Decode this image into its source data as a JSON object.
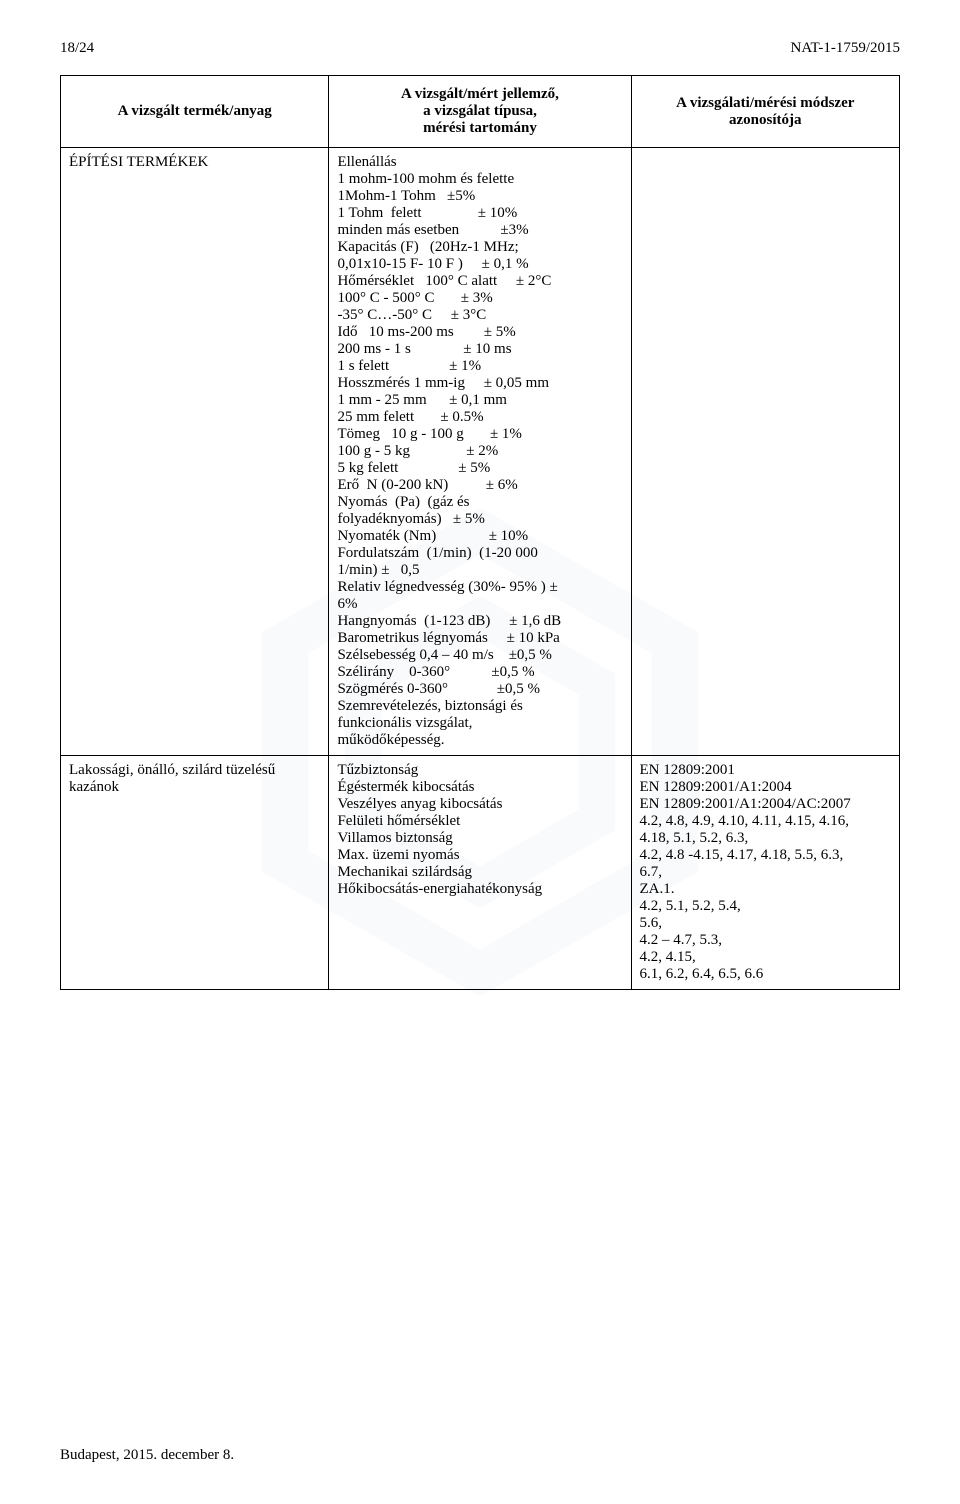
{
  "header": {
    "page_number": "18/24",
    "doc_ref": "NAT-1-1759/2015"
  },
  "watermark_fill": "#cfd6df",
  "table": {
    "headers": {
      "col1": "A vizsgált termék/anyag",
      "col2_line1": "A vizsgált/mért jellemző,",
      "col2_line2": "a vizsgálat típusa,",
      "col2_line3": "mérési tartomány",
      "col3_line1": "A vizsgálati/mérési módszer",
      "col3_line2": "azonosítója"
    },
    "row1": {
      "product": "ÉPÍTÉSI TERMÉKEK",
      "char_lines": [
        "Ellenállás",
        "1 mohm-100 mohm és felette",
        "1Mohm-1 Tohm   ±5%",
        "1 Tohm  felett               ± 10%",
        "minden más esetben           ±3%",
        "Kapacitás (F)   (20Hz-1 MHz;",
        "0,01x10-15 F- 10 F )     ± 0,1 %",
        "Hőmérséklet   100° C alatt     ± 2°C",
        "100° C - 500° C       ± 3%",
        "-35° C…-50° C     ± 3°C",
        "Idő   10 ms-200 ms        ± 5%",
        "200 ms - 1 s              ± 10 ms",
        "1 s felett                ± 1%",
        "Hosszmérés 1 mm-ig     ± 0,05 mm",
        "1 mm - 25 mm      ± 0,1 mm",
        "25 mm felett       ± 0.5%",
        "Tömeg   10 g - 100 g       ± 1%",
        "100 g - 5 kg               ± 2%",
        "5 kg felett                ± 5%",
        "Erő  N (0-200 kN)          ± 6%",
        "Nyomás  (Pa)  (gáz és",
        "folyadéknyomás)   ± 5%",
        "Nyomaték (Nm)              ± 10%",
        "Fordulatszám  (1/min)  (1-20 000",
        "1/min) ±   0,5",
        "Relativ légnedvesség (30%- 95% ) ±",
        "6%",
        "Hangnyomás  (1-123 dB)     ± 1,6 dB",
        "Barometrikus légnyomás     ± 10 kPa",
        "Szélsebesség 0,4 – 40 m/s    ±0,5 %",
        "Szélirány    0-360°           ±0,5 %",
        "Szögmérés 0-360°             ±0,5 %",
        "Szemrevételezés, biztonsági és",
        "funkcionális vizsgálat,",
        "működőképesség."
      ],
      "method": ""
    },
    "row2": {
      "product_lines": [
        "Lakossági, önálló, szilárd tüzelésű",
        "kazánok"
      ],
      "char_lines": [
        "Tűzbiztonság",
        "Égéstermék kibocsátás",
        "Veszélyes anyag kibocsátás",
        "Felületi hőmérséklet",
        "Villamos biztonság",
        "Max. üzemi nyomás",
        "Mechanikai szilárdság",
        "Hőkibocsátás-energiahatékonyság"
      ],
      "method_lines": [
        "EN 12809:2001",
        "EN 12809:2001/A1:2004",
        "EN 12809:2001/A1:2004/AC:2007",
        "4.2, 4.8, 4.9, 4.10, 4.11, 4.15, 4.16,",
        "4.18, 5.1, 5.2, 6.3,",
        "4.2, 4.8 -4.15, 4.17, 4.18, 5.5, 6.3,",
        "6.7,",
        "ZA.1.",
        "4.2, 5.1, 5.2, 5.4,",
        "5.6,",
        "4.2 – 4.7, 5.3,",
        "4.2, 4.15,",
        "6.1, 6.2, 6.4, 6.5, 6.6"
      ]
    }
  },
  "footer": "Budapest, 2015. december 8."
}
